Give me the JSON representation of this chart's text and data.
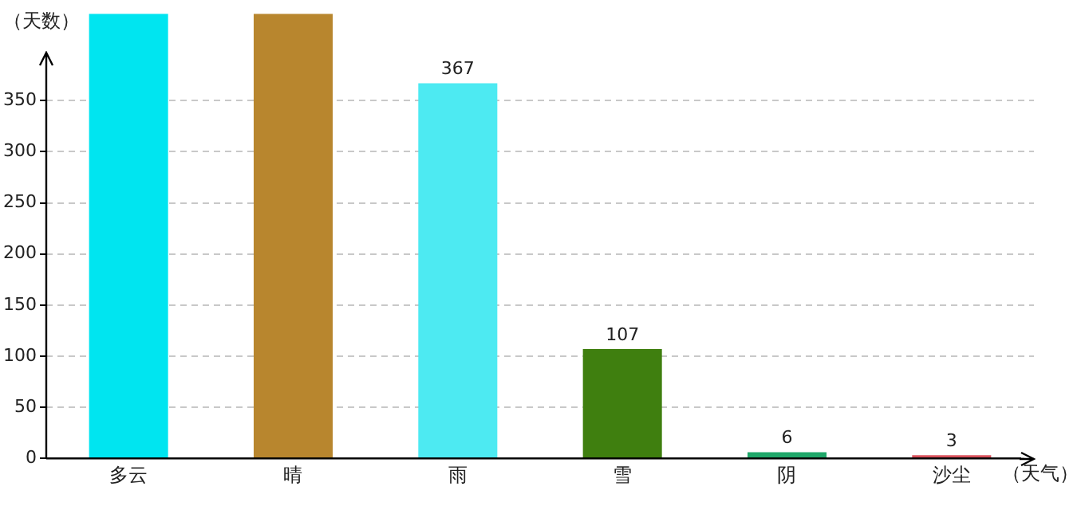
{
  "chart_data": {
    "type": "bar",
    "xlabel": "（天气）",
    "ylabel": "（天数）",
    "categories": [
      "多云",
      "晴",
      "雨",
      "雪",
      "阴",
      "沙尘"
    ],
    "values": [
      435,
      435,
      367,
      107,
      6,
      3
    ],
    "colors": [
      "#00e5f0",
      "#b8862e",
      "#4deaf2",
      "#3f7f0f",
      "#1fa86a",
      "#d9505a"
    ],
    "value_labels": [
      null,
      null,
      "367",
      "107",
      "6",
      "3"
    ],
    "ylim": [
      0,
      435
    ],
    "yticks": [
      0,
      50,
      100,
      150,
      200,
      250,
      300,
      350
    ],
    "grid": "y"
  }
}
